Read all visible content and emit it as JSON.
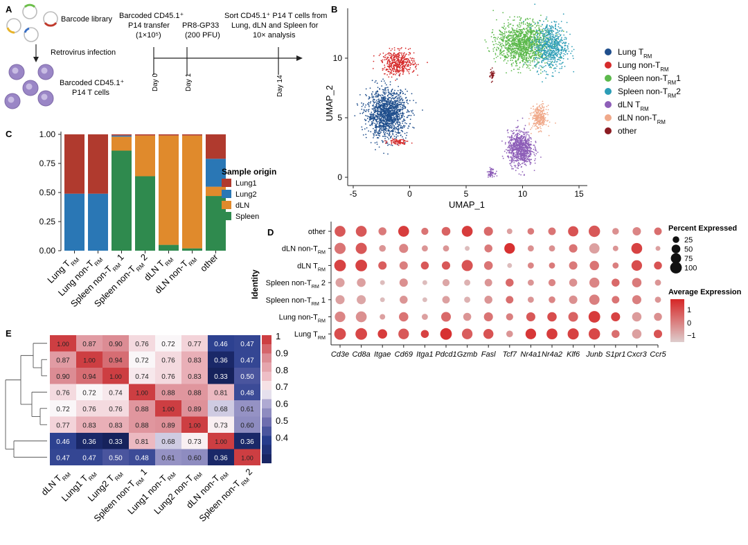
{
  "panel_a": {
    "letter": "A",
    "library_label": "Barcode library",
    "infection_label": "Retrovirus infection",
    "cells_label_1": "Barcoded CD45.1⁺",
    "cells_label_2": "P14 T cells",
    "transfer_1": "Barcoded CD45.1⁺",
    "transfer_2": "P14 transfer",
    "transfer_3": "(1×10⁵)",
    "infect_1": "PR8-GP33",
    "infect_2": "(200 PFU)",
    "sort_1": "Sort CD45.1⁺ P14 T cells from",
    "sort_2": "Lung, dLN and Spleen for",
    "sort_3": "10× analysis",
    "days": [
      "Day 0",
      "Day 1",
      "Day 14"
    ],
    "colors": {
      "green": "#6cbf4a",
      "red": "#c0392b",
      "yellow": "#e8b42a",
      "blue": "#3a6fc4",
      "cell": "#9a86c6"
    }
  },
  "panel_b": {
    "letter": "B",
    "xlabel": "UMAP_1",
    "ylabel": "UMAP_2",
    "xticks": [
      "-5",
      "0",
      "5",
      "10",
      "15"
    ],
    "yticks": [
      "0",
      "5",
      "10"
    ],
    "legend": [
      {
        "main": "Lung T",
        "sub": "RM",
        "tail": "",
        "color": "#1f4e8c"
      },
      {
        "main": "Lung non-T",
        "sub": "RM",
        "tail": "",
        "color": "#d62c2c"
      },
      {
        "main": "Spleen non-T",
        "sub": "RM",
        "tail": "1",
        "color": "#5cb94c"
      },
      {
        "main": "Spleen non-T",
        "sub": "RM",
        "tail": "2",
        "color": "#2c9db6"
      },
      {
        "main": "dLN T",
        "sub": "RM",
        "tail": "",
        "color": "#8e5fb8"
      },
      {
        "main": "dLN non-T",
        "sub": "RM",
        "tail": "",
        "color": "#f0a98a"
      },
      {
        "main": "other",
        "sub": "",
        "tail": "",
        "color": "#8b1c22"
      }
    ]
  },
  "chart_data": {
    "type": "bar",
    "title": "",
    "ylabel": "",
    "ylim": [
      0,
      1
    ],
    "yticks": [
      "0.00",
      "0.25",
      "0.50",
      "0.75",
      "1.00"
    ],
    "categories": [
      {
        "main": "Lung T",
        "sub": "RM",
        "tail": ""
      },
      {
        "main": "Lung non-T",
        "sub": "RM",
        "tail": ""
      },
      {
        "main": "Spleen non-T",
        "sub": "RM",
        "tail": " 1"
      },
      {
        "main": "Spleen non-T",
        "sub": "RM",
        "tail": " 2"
      },
      {
        "main": "dLN T",
        "sub": "RM",
        "tail": ""
      },
      {
        "main": "dLN non-T",
        "sub": "RM",
        "tail": ""
      },
      {
        "main": "other",
        "sub": "",
        "tail": ""
      }
    ],
    "legend_title": "Sample origin",
    "series": [
      {
        "name": "Spleen",
        "color": "#2f8a4e",
        "values": [
          0,
          0,
          0.86,
          0.64,
          0.05,
          0.02,
          0.47
        ]
      },
      {
        "name": "dLN",
        "color": "#e08a2c",
        "values": [
          0,
          0,
          0.12,
          0.35,
          0.94,
          0.97,
          0.08
        ]
      },
      {
        "name": "Lung2",
        "color": "#2a77b5",
        "values": [
          0.49,
          0.49,
          0.01,
          0,
          0,
          0,
          0.24
        ]
      },
      {
        "name": "Lung1",
        "color": "#b03a2e",
        "values": [
          0.51,
          0.51,
          0.01,
          0.01,
          0.01,
          0.01,
          0.21
        ]
      }
    ],
    "legend_order": [
      "Lung1",
      "Lung2",
      "dLN",
      "Spleen"
    ]
  },
  "panel_d": {
    "letter": "D",
    "ylabel": "Identity",
    "genes": [
      "Cd3e",
      "Cd8a",
      "Itgae",
      "Cd69",
      "Itga1",
      "Pdcd1",
      "Gzmb",
      "Fasl",
      "Tcf7",
      "Nr4a1",
      "Nr4a2",
      "Klf6",
      "Junb",
      "S1pr1",
      "Cxcr3",
      "Ccr5"
    ],
    "rows": [
      {
        "main": "other",
        "sub": "",
        "tail": ""
      },
      {
        "main": "dLN non-T",
        "sub": "RM",
        "tail": ""
      },
      {
        "main": "dLN T",
        "sub": "RM",
        "tail": ""
      },
      {
        "main": "Spleen non-T",
        "sub": "RM",
        "tail": " 2"
      },
      {
        "main": "Spleen non-T",
        "sub": "RM",
        "tail": " 1"
      },
      {
        "main": "Lung non-T",
        "sub": "RM",
        "tail": ""
      },
      {
        "main": "Lung T",
        "sub": "RM",
        "tail": ""
      }
    ],
    "pct": [
      [
        85,
        85,
        40,
        85,
        30,
        50,
        85,
        55,
        15,
        25,
        35,
        75,
        95,
        25,
        45,
        35
      ],
      [
        90,
        90,
        25,
        55,
        20,
        20,
        10,
        40,
        80,
        20,
        20,
        45,
        75,
        15,
        85,
        10
      ],
      [
        100,
        100,
        45,
        45,
        40,
        45,
        90,
        50,
        10,
        20,
        20,
        45,
        60,
        20,
        80,
        40
      ],
      [
        55,
        50,
        10,
        45,
        10,
        30,
        20,
        35,
        40,
        20,
        30,
        40,
        70,
        40,
        60,
        20
      ],
      [
        55,
        55,
        10,
        40,
        10,
        35,
        20,
        40,
        35,
        20,
        25,
        45,
        75,
        35,
        55,
        20
      ],
      [
        80,
        85,
        15,
        60,
        20,
        65,
        40,
        55,
        30,
        55,
        60,
        65,
        100,
        55,
        60,
        40
      ],
      [
        100,
        100,
        60,
        80,
        40,
        100,
        80,
        70,
        25,
        80,
        85,
        90,
        95,
        40,
        60,
        45
      ]
    ],
    "avg": [
      [
        0.8,
        0.8,
        0.2,
        1.3,
        0.3,
        0.6,
        1.3,
        0.5,
        -0.5,
        0.2,
        0.3,
        0.9,
        0.8,
        -0.2,
        0.0,
        0.4
      ],
      [
        0.3,
        0.8,
        -0.3,
        0.0,
        -0.3,
        -0.3,
        -1.0,
        0.2,
        1.5,
        -0.2,
        -0.2,
        0.3,
        -0.5,
        -0.3,
        1.2,
        -0.5
      ],
      [
        1.2,
        1.2,
        0.7,
        0.1,
        0.8,
        0.8,
        0.9,
        0.3,
        -1.0,
        0.0,
        0.2,
        0.2,
        0.3,
        0.1,
        1.0,
        0.9
      ],
      [
        -0.5,
        -0.5,
        -1.0,
        -0.2,
        -1.0,
        -0.6,
        -0.8,
        -0.3,
        0.5,
        -0.3,
        0.0,
        -0.2,
        0.0,
        0.5,
        0.2,
        -0.3
      ],
      [
        -0.5,
        -0.6,
        -1.0,
        -0.3,
        -1.0,
        -0.5,
        -0.8,
        -0.3,
        0.4,
        -0.3,
        0.0,
        -0.2,
        0.1,
        0.3,
        0.1,
        -0.3
      ],
      [
        0.0,
        -0.2,
        -0.5,
        0.3,
        -0.5,
        0.5,
        -0.3,
        0.3,
        0.1,
        0.8,
        1.0,
        0.6,
        1.3,
        1.2,
        -0.4,
        -0.2
      ],
      [
        1.0,
        1.1,
        1.3,
        0.8,
        1.2,
        1.5,
        0.7,
        0.9,
        -0.3,
        1.4,
        1.3,
        1.2,
        1.1,
        0.4,
        -0.5,
        0.9
      ]
    ],
    "size_legend_title": "Percent Expressed",
    "size_legend": [
      "25",
      "50",
      "75",
      "100"
    ],
    "color_legend_title": "Average Expression",
    "color_legend_ticks": [
      "1",
      "0",
      "−1"
    ]
  },
  "panel_e": {
    "letter": "E",
    "labels": [
      {
        "main": "dLN T",
        "sub": "RM",
        "tail": ""
      },
      {
        "main": "Lung1  T",
        "sub": "RM",
        "tail": ""
      },
      {
        "main": "Lung2 T",
        "sub": "RM",
        "tail": ""
      },
      {
        "main": "Spleen non-T",
        "sub": "RM",
        "tail": " 1"
      },
      {
        "main": "Lung1 non-T",
        "sub": "RM",
        "tail": ""
      },
      {
        "main": "Lung2 non-T",
        "sub": "RM",
        "tail": ""
      },
      {
        "main": "dLN non-T",
        "sub": "RM",
        "tail": ""
      },
      {
        "main": "Spleen non-T",
        "sub": "RM",
        "tail": " 2"
      }
    ],
    "matrix": [
      [
        "1.00",
        "0.87",
        "0.90",
        "0.76",
        "0.72",
        "0.77",
        "0.46",
        "0.47"
      ],
      [
        "0.87",
        "1.00",
        "0.94",
        "0.72",
        "0.76",
        "0.83",
        "0.36",
        "0.47"
      ],
      [
        "0.90",
        "0.94",
        "1.00",
        "0.74",
        "0.76",
        "0.83",
        "0.33",
        "0.50"
      ],
      [
        "0.76",
        "0.72",
        "0.74",
        "1.00",
        "0.88",
        "0.88",
        "0.81",
        "0.48"
      ],
      [
        "0.72",
        "0.76",
        "0.76",
        "0.88",
        "1.00",
        "0.89",
        "0.68",
        "0.61"
      ],
      [
        "0.77",
        "0.83",
        "0.83",
        "0.88",
        "0.89",
        "1.00",
        "0.73",
        "0.60"
      ],
      [
        "0.46",
        "0.36",
        "0.33",
        "0.81",
        "0.68",
        "0.73",
        "1.00",
        "0.36"
      ],
      [
        "0.47",
        "0.47",
        "0.50",
        "0.48",
        "0.61",
        "0.60",
        "0.36",
        "1.00"
      ]
    ],
    "scale_ticks": [
      "1",
      "0.9",
      "0.8",
      "0.7",
      "0.6",
      "0.5",
      "0.4"
    ]
  }
}
